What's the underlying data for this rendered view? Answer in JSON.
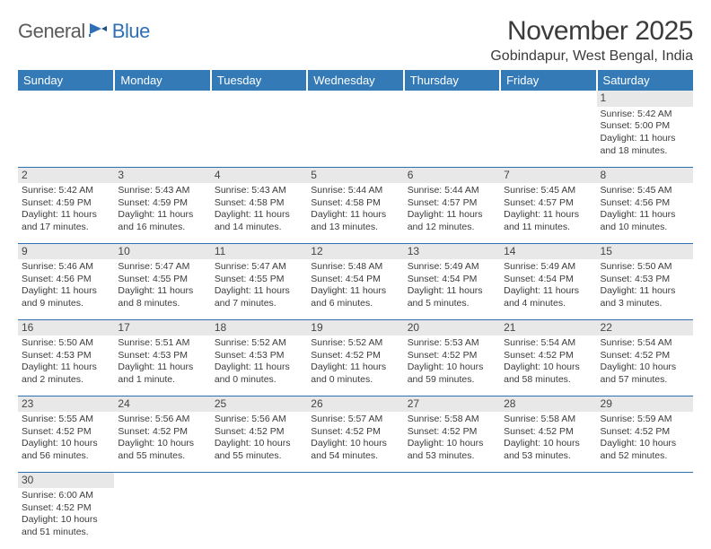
{
  "brand": {
    "part1": "General",
    "part2": "Blue"
  },
  "title": "November 2025",
  "location": "Gobindapur, West Bengal, India",
  "colors": {
    "header_bg": "#337ab7",
    "header_text": "#ffffff",
    "daynum_bg": "#e8e8e8",
    "border": "#2f6fb3",
    "text": "#3b3b3b",
    "logo_gray": "#5b5b5b",
    "logo_blue": "#2f6fb3"
  },
  "weekdays": [
    "Sunday",
    "Monday",
    "Tuesday",
    "Wednesday",
    "Thursday",
    "Friday",
    "Saturday"
  ],
  "weeks": [
    [
      null,
      null,
      null,
      null,
      null,
      null,
      {
        "n": "1",
        "sr": "Sunrise: 5:42 AM",
        "ss": "Sunset: 5:00 PM",
        "d1": "Daylight: 11 hours",
        "d2": "and 18 minutes."
      }
    ],
    [
      {
        "n": "2",
        "sr": "Sunrise: 5:42 AM",
        "ss": "Sunset: 4:59 PM",
        "d1": "Daylight: 11 hours",
        "d2": "and 17 minutes."
      },
      {
        "n": "3",
        "sr": "Sunrise: 5:43 AM",
        "ss": "Sunset: 4:59 PM",
        "d1": "Daylight: 11 hours",
        "d2": "and 16 minutes."
      },
      {
        "n": "4",
        "sr": "Sunrise: 5:43 AM",
        "ss": "Sunset: 4:58 PM",
        "d1": "Daylight: 11 hours",
        "d2": "and 14 minutes."
      },
      {
        "n": "5",
        "sr": "Sunrise: 5:44 AM",
        "ss": "Sunset: 4:58 PM",
        "d1": "Daylight: 11 hours",
        "d2": "and 13 minutes."
      },
      {
        "n": "6",
        "sr": "Sunrise: 5:44 AM",
        "ss": "Sunset: 4:57 PM",
        "d1": "Daylight: 11 hours",
        "d2": "and 12 minutes."
      },
      {
        "n": "7",
        "sr": "Sunrise: 5:45 AM",
        "ss": "Sunset: 4:57 PM",
        "d1": "Daylight: 11 hours",
        "d2": "and 11 minutes."
      },
      {
        "n": "8",
        "sr": "Sunrise: 5:45 AM",
        "ss": "Sunset: 4:56 PM",
        "d1": "Daylight: 11 hours",
        "d2": "and 10 minutes."
      }
    ],
    [
      {
        "n": "9",
        "sr": "Sunrise: 5:46 AM",
        "ss": "Sunset: 4:56 PM",
        "d1": "Daylight: 11 hours",
        "d2": "and 9 minutes."
      },
      {
        "n": "10",
        "sr": "Sunrise: 5:47 AM",
        "ss": "Sunset: 4:55 PM",
        "d1": "Daylight: 11 hours",
        "d2": "and 8 minutes."
      },
      {
        "n": "11",
        "sr": "Sunrise: 5:47 AM",
        "ss": "Sunset: 4:55 PM",
        "d1": "Daylight: 11 hours",
        "d2": "and 7 minutes."
      },
      {
        "n": "12",
        "sr": "Sunrise: 5:48 AM",
        "ss": "Sunset: 4:54 PM",
        "d1": "Daylight: 11 hours",
        "d2": "and 6 minutes."
      },
      {
        "n": "13",
        "sr": "Sunrise: 5:49 AM",
        "ss": "Sunset: 4:54 PM",
        "d1": "Daylight: 11 hours",
        "d2": "and 5 minutes."
      },
      {
        "n": "14",
        "sr": "Sunrise: 5:49 AM",
        "ss": "Sunset: 4:54 PM",
        "d1": "Daylight: 11 hours",
        "d2": "and 4 minutes."
      },
      {
        "n": "15",
        "sr": "Sunrise: 5:50 AM",
        "ss": "Sunset: 4:53 PM",
        "d1": "Daylight: 11 hours",
        "d2": "and 3 minutes."
      }
    ],
    [
      {
        "n": "16",
        "sr": "Sunrise: 5:50 AM",
        "ss": "Sunset: 4:53 PM",
        "d1": "Daylight: 11 hours",
        "d2": "and 2 minutes."
      },
      {
        "n": "17",
        "sr": "Sunrise: 5:51 AM",
        "ss": "Sunset: 4:53 PM",
        "d1": "Daylight: 11 hours",
        "d2": "and 1 minute."
      },
      {
        "n": "18",
        "sr": "Sunrise: 5:52 AM",
        "ss": "Sunset: 4:53 PM",
        "d1": "Daylight: 11 hours",
        "d2": "and 0 minutes."
      },
      {
        "n": "19",
        "sr": "Sunrise: 5:52 AM",
        "ss": "Sunset: 4:52 PM",
        "d1": "Daylight: 11 hours",
        "d2": "and 0 minutes."
      },
      {
        "n": "20",
        "sr": "Sunrise: 5:53 AM",
        "ss": "Sunset: 4:52 PM",
        "d1": "Daylight: 10 hours",
        "d2": "and 59 minutes."
      },
      {
        "n": "21",
        "sr": "Sunrise: 5:54 AM",
        "ss": "Sunset: 4:52 PM",
        "d1": "Daylight: 10 hours",
        "d2": "and 58 minutes."
      },
      {
        "n": "22",
        "sr": "Sunrise: 5:54 AM",
        "ss": "Sunset: 4:52 PM",
        "d1": "Daylight: 10 hours",
        "d2": "and 57 minutes."
      }
    ],
    [
      {
        "n": "23",
        "sr": "Sunrise: 5:55 AM",
        "ss": "Sunset: 4:52 PM",
        "d1": "Daylight: 10 hours",
        "d2": "and 56 minutes."
      },
      {
        "n": "24",
        "sr": "Sunrise: 5:56 AM",
        "ss": "Sunset: 4:52 PM",
        "d1": "Daylight: 10 hours",
        "d2": "and 55 minutes."
      },
      {
        "n": "25",
        "sr": "Sunrise: 5:56 AM",
        "ss": "Sunset: 4:52 PM",
        "d1": "Daylight: 10 hours",
        "d2": "and 55 minutes."
      },
      {
        "n": "26",
        "sr": "Sunrise: 5:57 AM",
        "ss": "Sunset: 4:52 PM",
        "d1": "Daylight: 10 hours",
        "d2": "and 54 minutes."
      },
      {
        "n": "27",
        "sr": "Sunrise: 5:58 AM",
        "ss": "Sunset: 4:52 PM",
        "d1": "Daylight: 10 hours",
        "d2": "and 53 minutes."
      },
      {
        "n": "28",
        "sr": "Sunrise: 5:58 AM",
        "ss": "Sunset: 4:52 PM",
        "d1": "Daylight: 10 hours",
        "d2": "and 53 minutes."
      },
      {
        "n": "29",
        "sr": "Sunrise: 5:59 AM",
        "ss": "Sunset: 4:52 PM",
        "d1": "Daylight: 10 hours",
        "d2": "and 52 minutes."
      }
    ],
    [
      {
        "n": "30",
        "sr": "Sunrise: 6:00 AM",
        "ss": "Sunset: 4:52 PM",
        "d1": "Daylight: 10 hours",
        "d2": "and 51 minutes."
      },
      null,
      null,
      null,
      null,
      null,
      null
    ]
  ]
}
